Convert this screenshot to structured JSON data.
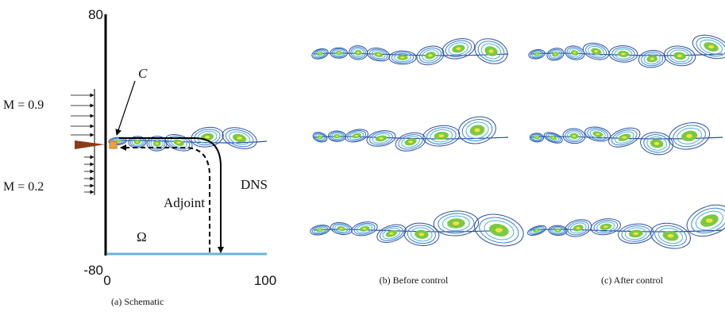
{
  "schematic": {
    "y_max": "80",
    "y_min": "-80",
    "x_min": "0",
    "x_max": "100",
    "inflow_top": "M = 0.9",
    "inflow_bottom": "M = 0.2",
    "control_label": "C",
    "adjoint_label": "Adjoint",
    "dns_label": "DNS",
    "domain_label": "Ω",
    "caption": "(a) Schematic"
  },
  "before": {
    "caption": "(b) Before control"
  },
  "after": {
    "caption": "(c) After control"
  }
}
